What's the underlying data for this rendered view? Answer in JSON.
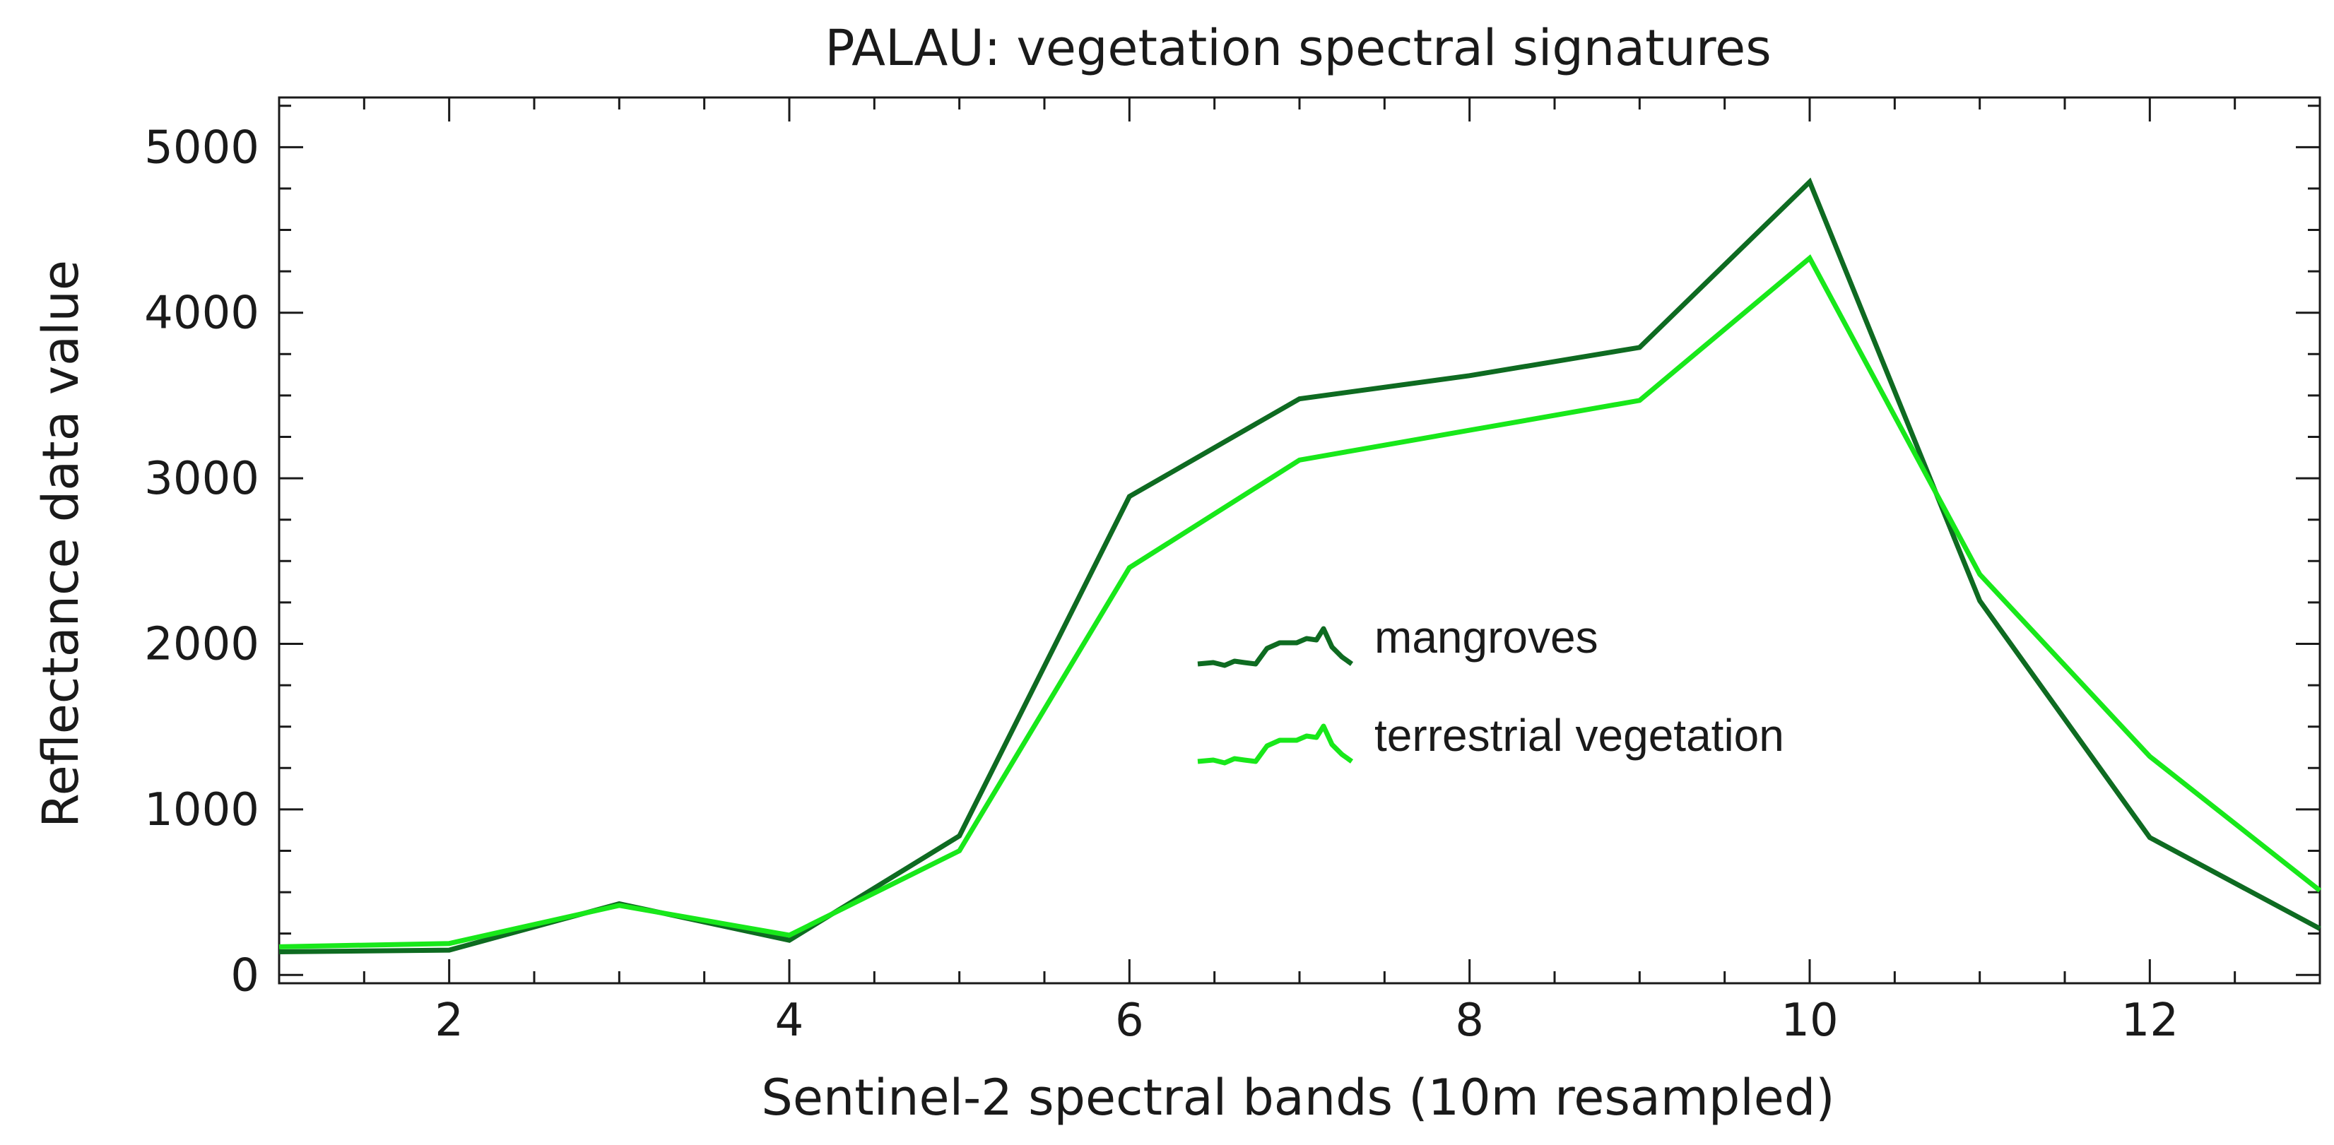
{
  "chart_data": {
    "type": "line",
    "title": "PALAU: vegetation spectral signatures",
    "xlabel": "Sentinel-2 spectral bands (10m resampled)",
    "ylabel": "Reflectance data value",
    "xlim": [
      1,
      13
    ],
    "ylim": [
      -50,
      5300
    ],
    "x_ticks": [
      2,
      4,
      6,
      8,
      10,
      12
    ],
    "y_ticks": [
      0,
      1000,
      2000,
      3000,
      4000,
      5000
    ],
    "x_minor_step": 0.5,
    "y_minor_step": 250,
    "grid": false,
    "legend_position": "center",
    "x": [
      1,
      2,
      3,
      4,
      5,
      6,
      7,
      8,
      9,
      10,
      11,
      12,
      13
    ],
    "series": [
      {
        "name": "mangroves",
        "color": "#0e6b21",
        "values": [
          140,
          150,
          430,
          210,
          840,
          2890,
          3480,
          3620,
          3790,
          4790,
          2260,
          830,
          280
        ]
      },
      {
        "name": "terrestrial vegetation",
        "color": "#18e81a",
        "values": [
          170,
          190,
          420,
          240,
          750,
          2460,
          3110,
          3290,
          3470,
          4330,
          2420,
          1320,
          510
        ]
      }
    ]
  }
}
